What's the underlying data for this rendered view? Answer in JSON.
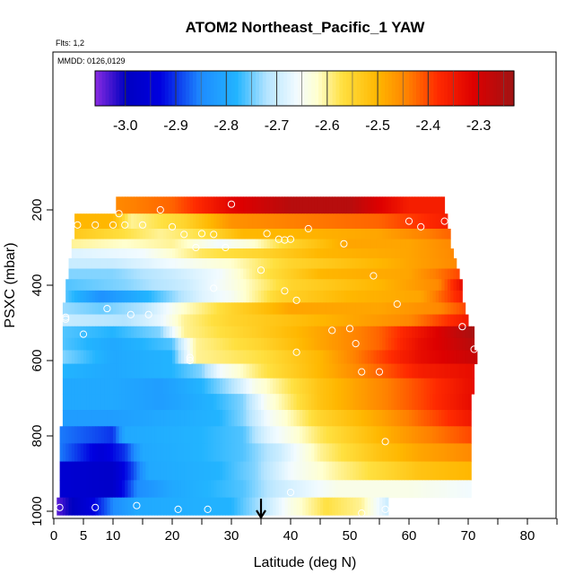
{
  "chart_data": {
    "type": "heatmap",
    "title": "ATOM2 Northeast_Pacific_1 YAW",
    "flights_note": "Flts: 1,2",
    "date_note": "MMDD: 0126,0129",
    "xlabel": "Latitude (deg N)",
    "ylabel": "PSXC (mbar)",
    "xlim": [
      0,
      85
    ],
    "ylim": [
      1000,
      100
    ],
    "x_ticks": [
      {
        "value": 0,
        "label": "0"
      },
      {
        "value": 5,
        "label": "5"
      },
      {
        "value": 10,
        "label": "10"
      },
      {
        "value": 20,
        "label": "20"
      },
      {
        "value": 30,
        "label": "30"
      },
      {
        "value": 40,
        "label": "40"
      },
      {
        "value": 50,
        "label": "50"
      },
      {
        "value": 60,
        "label": "60"
      },
      {
        "value": 70,
        "label": "70"
      },
      {
        "value": 80,
        "label": "80"
      }
    ],
    "x_minor_ticks": [
      15,
      25,
      35,
      45,
      55,
      65,
      75,
      85
    ],
    "y_ticks": [
      {
        "value": 200,
        "label": "200"
      },
      {
        "value": 400,
        "label": "400"
      },
      {
        "value": 600,
        "label": "600"
      },
      {
        "value": 800,
        "label": "800"
      },
      {
        "value": 1000,
        "label": "1000"
      }
    ],
    "colorbar": {
      "min": -3.06,
      "max": -2.23,
      "ticks": [
        {
          "value": -3.0,
          "label": "-3.0"
        },
        {
          "value": -2.9,
          "label": "-2.9"
        },
        {
          "value": -2.8,
          "label": "-2.8"
        },
        {
          "value": -2.7,
          "label": "-2.7"
        },
        {
          "value": -2.6,
          "label": "-2.6"
        },
        {
          "value": -2.5,
          "label": "-2.5"
        },
        {
          "value": -2.4,
          "label": "-2.4"
        },
        {
          "value": -2.3,
          "label": "-2.3"
        }
      ],
      "stops": [
        {
          "v": -3.06,
          "c": "#8a2be2"
        },
        {
          "v": -3.0,
          "c": "#0000c0"
        },
        {
          "v": -2.93,
          "c": "#0000e0"
        },
        {
          "v": -2.85,
          "c": "#1e8cff"
        },
        {
          "v": -2.78,
          "c": "#22b4ff"
        },
        {
          "v": -2.72,
          "c": "#b4e4ff"
        },
        {
          "v": -2.66,
          "c": "#f2fbff"
        },
        {
          "v": -2.62,
          "c": "#ffffd0"
        },
        {
          "v": -2.57,
          "c": "#ffe040"
        },
        {
          "v": -2.5,
          "c": "#ffb700"
        },
        {
          "v": -2.44,
          "c": "#ff8000"
        },
        {
          "v": -2.38,
          "c": "#ff2a00"
        },
        {
          "v": -2.31,
          "c": "#dd0000"
        },
        {
          "v": -2.23,
          "c": "#a01414"
        }
      ]
    },
    "rows": [
      {
        "p": 185,
        "x0": 10.5,
        "x1": 66.0,
        "k": [
          [
            10.5,
            -2.45
          ],
          [
            20,
            -2.42
          ],
          [
            30,
            -2.32
          ],
          [
            40,
            -2.26
          ],
          [
            50,
            -2.26
          ],
          [
            60,
            -2.36
          ],
          [
            66,
            -2.36
          ]
        ]
      },
      {
        "p": 235,
        "x0": 3.5,
        "x1": 66.5,
        "k": [
          [
            3.5,
            -2.5
          ],
          [
            10,
            -2.5
          ],
          [
            13,
            -2.6
          ],
          [
            22,
            -2.55
          ],
          [
            30,
            -2.46
          ],
          [
            40,
            -2.44
          ],
          [
            55,
            -2.42
          ],
          [
            66.5,
            -2.36
          ]
        ]
      },
      {
        "p": 265,
        "x0": 3.5,
        "x1": 67.0,
        "k": [
          [
            3.5,
            -2.53
          ],
          [
            10,
            -2.56
          ],
          [
            18,
            -2.6
          ],
          [
            25,
            -2.57
          ],
          [
            32,
            -2.5
          ],
          [
            40,
            -2.5
          ],
          [
            55,
            -2.48
          ],
          [
            67,
            -2.42
          ]
        ]
      },
      {
        "p": 290,
        "x0": 3.0,
        "x1": 67.0,
        "k": [
          [
            3,
            -2.6
          ],
          [
            12,
            -2.62
          ],
          [
            20,
            -2.6
          ],
          [
            28,
            -2.66
          ],
          [
            34,
            -2.62
          ],
          [
            40,
            -2.55
          ],
          [
            50,
            -2.48
          ],
          [
            60,
            -2.48
          ],
          [
            67,
            -2.45
          ]
        ]
      },
      {
        "p": 315,
        "x0": 3.0,
        "x1": 67.5,
        "k": [
          [
            3,
            -2.68
          ],
          [
            15,
            -2.66
          ],
          [
            25,
            -2.58
          ],
          [
            35,
            -2.55
          ],
          [
            45,
            -2.5
          ],
          [
            60,
            -2.48
          ],
          [
            67.5,
            -2.45
          ]
        ]
      },
      {
        "p": 342,
        "x0": 2.5,
        "x1": 68.0,
        "k": [
          [
            2.5,
            -2.7
          ],
          [
            10,
            -2.7
          ],
          [
            20,
            -2.66
          ],
          [
            30,
            -2.62
          ],
          [
            40,
            -2.55
          ],
          [
            55,
            -2.5
          ],
          [
            68,
            -2.45
          ]
        ]
      },
      {
        "p": 370,
        "x0": 2.5,
        "x1": 68.5,
        "k": [
          [
            2.5,
            -2.74
          ],
          [
            10,
            -2.74
          ],
          [
            20,
            -2.7
          ],
          [
            28,
            -2.66
          ],
          [
            35,
            -2.58
          ],
          [
            45,
            -2.5
          ],
          [
            60,
            -2.48
          ],
          [
            68.5,
            -2.4
          ]
        ]
      },
      {
        "p": 398,
        "x0": 2.0,
        "x1": 69.0,
        "k": [
          [
            2,
            -2.76
          ],
          [
            12,
            -2.74
          ],
          [
            22,
            -2.7
          ],
          [
            30,
            -2.64
          ],
          [
            40,
            -2.55
          ],
          [
            55,
            -2.5
          ],
          [
            65,
            -2.45
          ],
          [
            69,
            -2.33
          ]
        ]
      },
      {
        "p": 430,
        "x0": 2.0,
        "x1": 69.0,
        "k": [
          [
            2,
            -2.76
          ],
          [
            8,
            -2.84
          ],
          [
            16,
            -2.78
          ],
          [
            25,
            -2.68
          ],
          [
            30,
            -2.65
          ],
          [
            38,
            -2.55
          ],
          [
            50,
            -2.5
          ],
          [
            62,
            -2.48
          ],
          [
            69,
            -2.36
          ]
        ]
      },
      {
        "p": 462,
        "x0": 1.5,
        "x1": 69.5,
        "k": [
          [
            1.5,
            -2.73
          ],
          [
            8,
            -2.75
          ],
          [
            15,
            -2.72
          ],
          [
            22,
            -2.62
          ],
          [
            30,
            -2.55
          ],
          [
            40,
            -2.48
          ],
          [
            55,
            -2.48
          ],
          [
            65,
            -2.45
          ],
          [
            69.5,
            -2.4
          ]
        ]
      },
      {
        "p": 493,
        "x0": 1.5,
        "x1": 70.0,
        "k": [
          [
            1.5,
            -2.7
          ],
          [
            12,
            -2.72
          ],
          [
            18,
            -2.67
          ],
          [
            22,
            -2.6
          ],
          [
            30,
            -2.55
          ],
          [
            45,
            -2.5
          ],
          [
            60,
            -2.45
          ],
          [
            70,
            -2.35
          ]
        ]
      },
      {
        "p": 525,
        "x0": 1.5,
        "x1": 71.0,
        "k": [
          [
            1.5,
            -2.76
          ],
          [
            10,
            -2.78
          ],
          [
            18,
            -2.74
          ],
          [
            22,
            -2.6
          ],
          [
            32,
            -2.55
          ],
          [
            45,
            -2.48
          ],
          [
            55,
            -2.42
          ],
          [
            63,
            -2.33
          ],
          [
            71,
            -2.24
          ]
        ]
      },
      {
        "p": 555,
        "x0": 1.5,
        "x1": 71.0,
        "k": [
          [
            1.5,
            -2.76
          ],
          [
            10,
            -2.8
          ],
          [
            20,
            -2.76
          ],
          [
            24,
            -2.6
          ],
          [
            35,
            -2.55
          ],
          [
            45,
            -2.48
          ],
          [
            55,
            -2.42
          ],
          [
            62,
            -2.33
          ],
          [
            71,
            -2.26
          ]
        ]
      },
      {
        "p": 590,
        "x0": 1.5,
        "x1": 71.5,
        "k": [
          [
            1.5,
            -2.74
          ],
          [
            10,
            -2.8
          ],
          [
            20,
            -2.78
          ],
          [
            24,
            -2.6
          ],
          [
            35,
            -2.57
          ],
          [
            45,
            -2.5
          ],
          [
            55,
            -2.4
          ],
          [
            62,
            -2.33
          ],
          [
            71.5,
            -2.28
          ]
        ]
      },
      {
        "p": 627,
        "x0": 1.5,
        "x1": 71.0,
        "k": [
          [
            1.5,
            -2.78
          ],
          [
            10,
            -2.8
          ],
          [
            20,
            -2.78
          ],
          [
            25,
            -2.74
          ],
          [
            28,
            -2.66
          ],
          [
            35,
            -2.58
          ],
          [
            45,
            -2.5
          ],
          [
            55,
            -2.42
          ],
          [
            62,
            -2.36
          ],
          [
            71,
            -2.33
          ]
        ]
      },
      {
        "p": 667,
        "x0": 1.5,
        "x1": 71.0,
        "k": [
          [
            1.5,
            -2.8
          ],
          [
            10,
            -2.8
          ],
          [
            18,
            -2.82
          ],
          [
            25,
            -2.78
          ],
          [
            30,
            -2.72
          ],
          [
            34,
            -2.64
          ],
          [
            45,
            -2.52
          ],
          [
            55,
            -2.45
          ],
          [
            62,
            -2.4
          ],
          [
            71,
            -2.33
          ]
        ]
      },
      {
        "p": 710,
        "x0": 1.5,
        "x1": 70.5,
        "k": [
          [
            1.5,
            -2.8
          ],
          [
            10,
            -2.8
          ],
          [
            18,
            -2.82
          ],
          [
            27,
            -2.78
          ],
          [
            32,
            -2.74
          ],
          [
            36,
            -2.64
          ],
          [
            45,
            -2.52
          ],
          [
            55,
            -2.45
          ],
          [
            62,
            -2.4
          ],
          [
            70.5,
            -2.33
          ]
        ]
      },
      {
        "p": 752,
        "x0": 1.5,
        "x1": 70.5,
        "k": [
          [
            1.5,
            -2.82
          ],
          [
            10,
            -2.82
          ],
          [
            18,
            -2.8
          ],
          [
            28,
            -2.78
          ],
          [
            32,
            -2.74
          ],
          [
            36,
            -2.66
          ],
          [
            45,
            -2.55
          ],
          [
            55,
            -2.48
          ],
          [
            62,
            -2.42
          ],
          [
            70.5,
            -2.35
          ]
        ]
      },
      {
        "p": 797,
        "x0": 1.0,
        "x1": 70.5,
        "k": [
          [
            1,
            -2.86
          ],
          [
            10,
            -2.9
          ],
          [
            12,
            -2.8
          ],
          [
            25,
            -2.78
          ],
          [
            32,
            -2.76
          ],
          [
            36,
            -2.68
          ],
          [
            45,
            -2.58
          ],
          [
            55,
            -2.5
          ],
          [
            62,
            -2.45
          ],
          [
            70.5,
            -2.4
          ]
        ]
      },
      {
        "p": 843,
        "x0": 1.0,
        "x1": 70.5,
        "k": [
          [
            1,
            -2.86
          ],
          [
            8,
            -2.95
          ],
          [
            12,
            -2.9
          ],
          [
            15,
            -2.8
          ],
          [
            25,
            -2.78
          ],
          [
            32,
            -2.76
          ],
          [
            38,
            -2.7
          ],
          [
            45,
            -2.6
          ],
          [
            55,
            -2.52
          ],
          [
            62,
            -2.48
          ],
          [
            70.5,
            -2.45
          ]
        ]
      },
      {
        "p": 893,
        "x0": 1.0,
        "x1": 70.5,
        "k": [
          [
            1,
            -2.96
          ],
          [
            10,
            -2.98
          ],
          [
            13,
            -2.9
          ],
          [
            16,
            -2.8
          ],
          [
            28,
            -2.78
          ],
          [
            34,
            -2.74
          ],
          [
            40,
            -2.66
          ],
          [
            48,
            -2.6
          ],
          [
            55,
            -2.56
          ],
          [
            62,
            -2.52
          ],
          [
            70.5,
            -2.5
          ]
        ]
      },
      {
        "p": 942,
        "x0": 1.0,
        "x1": 70.5,
        "k": [
          [
            1,
            -2.96
          ],
          [
            10,
            -2.98
          ],
          [
            14,
            -2.85
          ],
          [
            20,
            -2.8
          ],
          [
            32,
            -2.76
          ],
          [
            38,
            -2.7
          ],
          [
            48,
            -2.64
          ],
          [
            60,
            -2.64
          ],
          [
            70.5,
            -2.66
          ]
        ]
      },
      {
        "p": 985,
        "x0": 0.5,
        "x1": 56.5,
        "k": [
          [
            0.5,
            -3.04
          ],
          [
            6,
            -2.95
          ],
          [
            10,
            -2.85
          ],
          [
            14,
            -2.8
          ],
          [
            30,
            -2.78
          ],
          [
            35,
            -2.72
          ],
          [
            40,
            -2.64
          ],
          [
            46,
            -2.57
          ],
          [
            52,
            -2.6
          ],
          [
            56.5,
            -2.7
          ]
        ]
      }
    ],
    "points": [
      [
        11,
        210
      ],
      [
        18,
        200
      ],
      [
        30,
        185
      ],
      [
        4,
        240
      ],
      [
        7,
        240
      ],
      [
        10,
        240
      ],
      [
        12,
        240
      ],
      [
        15,
        240
      ],
      [
        20,
        245
      ],
      [
        22,
        265
      ],
      [
        25,
        263
      ],
      [
        27,
        265
      ],
      [
        36,
        263
      ],
      [
        60,
        230
      ],
      [
        62,
        245
      ],
      [
        66,
        230
      ],
      [
        24,
        300
      ],
      [
        29,
        300
      ],
      [
        38,
        278
      ],
      [
        39,
        280
      ],
      [
        40,
        278
      ],
      [
        43,
        250
      ],
      [
        49,
        290
      ],
      [
        35,
        360
      ],
      [
        54,
        375
      ],
      [
        27,
        408
      ],
      [
        39,
        415
      ],
      [
        41,
        440
      ],
      [
        58,
        450
      ],
      [
        9,
        462
      ],
      [
        13,
        478
      ],
      [
        16,
        478
      ],
      [
        2,
        485
      ],
      [
        2,
        490
      ],
      [
        47,
        520
      ],
      [
        50,
        515
      ],
      [
        69,
        510
      ],
      [
        5,
        530
      ],
      [
        51,
        555
      ],
      [
        71,
        570
      ],
      [
        23,
        592
      ],
      [
        41,
        578
      ],
      [
        52,
        630
      ],
      [
        55,
        630
      ],
      [
        23,
        600
      ],
      [
        56,
        815
      ],
      [
        40,
        950
      ],
      [
        1,
        990
      ],
      [
        7,
        990
      ],
      [
        14,
        985
      ],
      [
        21,
        995
      ],
      [
        26,
        995
      ],
      [
        52,
        1005
      ],
      [
        56,
        995
      ]
    ],
    "marker": {
      "x": 35,
      "label": "arrow"
    }
  }
}
